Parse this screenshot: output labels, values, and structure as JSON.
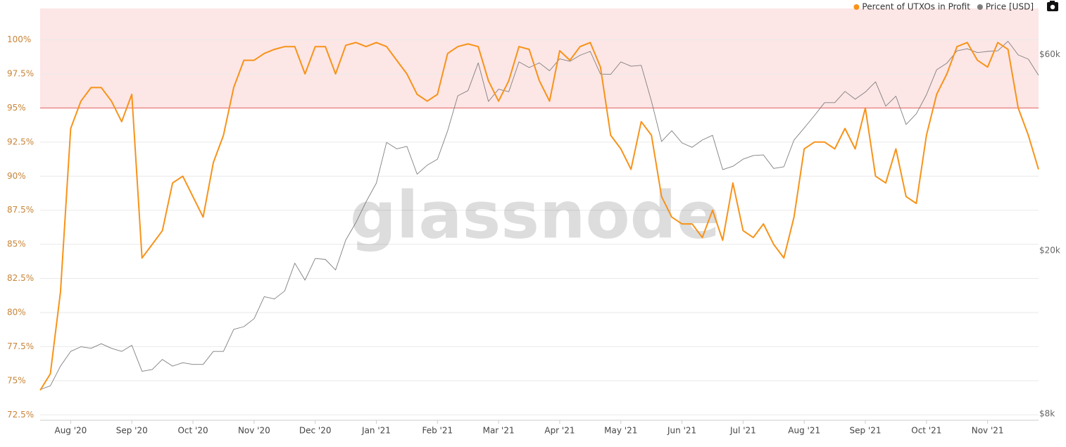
{
  "chart_data": {
    "type": "line",
    "watermark": "glassnode",
    "categories": [
      null,
      null,
      null,
      "Aug '20",
      null,
      null,
      null,
      null,
      null,
      "Sep '20",
      null,
      null,
      null,
      null,
      null,
      "Oct '20",
      null,
      null,
      null,
      null,
      null,
      "Nov '20",
      null,
      null,
      null,
      null,
      null,
      "Dec '20",
      null,
      null,
      null,
      null,
      null,
      "Jan '21",
      null,
      null,
      null,
      null,
      null,
      "Feb '21",
      null,
      null,
      null,
      null,
      null,
      "Mar '21",
      null,
      null,
      null,
      null,
      null,
      "Apr '21",
      null,
      null,
      null,
      null,
      null,
      "May '21",
      null,
      null,
      null,
      null,
      null,
      "Jun '21",
      null,
      null,
      null,
      null,
      null,
      "Jul '21",
      null,
      null,
      null,
      null,
      null,
      "Aug '21",
      null,
      null,
      null,
      null,
      null,
      "Sep '21",
      null,
      null,
      null,
      null,
      null,
      "Oct '21",
      null,
      null,
      null,
      null,
      null,
      "Nov '21",
      null,
      null,
      null,
      null,
      null
    ],
    "series": [
      {
        "name": "Percent of UTXOs in Profit",
        "color": "#f7931a",
        "axis": "y",
        "values": [
          74.3,
          75.5,
          81.5,
          93.5,
          95.5,
          96.5,
          96.5,
          95.5,
          94,
          96,
          84,
          85,
          86,
          89.5,
          90,
          88.5,
          87,
          91,
          93,
          96.5,
          98.5,
          98.5,
          99,
          99.3,
          99.5,
          99.5,
          97.5,
          99.5,
          99.5,
          97.5,
          99.6,
          99.8,
          99.5,
          99.8,
          99.5,
          98.5,
          97.5,
          96,
          95.5,
          96,
          99,
          99.5,
          99.7,
          99.5,
          97,
          95.5,
          97,
          99.5,
          99.3,
          97,
          95.5,
          99.2,
          98.5,
          99.5,
          99.8,
          98,
          93,
          92,
          90.5,
          94,
          93,
          88.5,
          87,
          86.5,
          86.5,
          85.5,
          87.5,
          85.3,
          89.5,
          86,
          85.5,
          86.5,
          85,
          84,
          87,
          92,
          92.5,
          92.5,
          92,
          93.5,
          92,
          95,
          90,
          89.5,
          92,
          88.5,
          88,
          93,
          96,
          97.5,
          99.5,
          99.8,
          98.5,
          98,
          99.8,
          99.3,
          95,
          93,
          90.5
        ]
      },
      {
        "name": "Price [USD]",
        "color": "#7f7f7f",
        "axis": "y2",
        "values": [
          9200,
          9400,
          10500,
          11400,
          11700,
          11600,
          11900,
          11600,
          11400,
          11800,
          10200,
          10300,
          10900,
          10500,
          10700,
          10600,
          10600,
          11400,
          11400,
          12900,
          13100,
          13700,
          15500,
          15300,
          16000,
          18700,
          17000,
          19200,
          19100,
          18000,
          21300,
          23500,
          26400,
          29300,
          36800,
          35500,
          36000,
          30800,
          32400,
          33500,
          39300,
          47800,
          49200,
          57500,
          46300,
          49600,
          48900,
          57800,
          56000,
          57500,
          55000,
          58800,
          58000,
          60000,
          61300,
          54000,
          53900,
          57800,
          56400,
          56700,
          46400,
          37000,
          39300,
          36700,
          35800,
          37300,
          38300,
          31600,
          32200,
          33500,
          34200,
          34300,
          31800,
          32100,
          37300,
          39900,
          42800,
          46000,
          46000,
          49000,
          46900,
          48800,
          51700,
          45100,
          47700,
          40700,
          43200,
          48100,
          55300,
          57400,
          61500,
          62200,
          60900,
          61300,
          61500,
          64900,
          60100,
          58700,
          53600
        ]
      }
    ],
    "ylim": [
      72.1,
      102.3
    ],
    "yticks": [
      {
        "value": 72.5,
        "label": "72.5%"
      },
      {
        "value": 75,
        "label": "75%"
      },
      {
        "value": 77.5,
        "label": "77.5%"
      },
      {
        "value": 80,
        "label": "80%"
      },
      {
        "value": 82.5,
        "label": "82.5%"
      },
      {
        "value": 85,
        "label": "85%"
      },
      {
        "value": 87.5,
        "label": "87.5%"
      },
      {
        "value": 90,
        "label": "90%"
      },
      {
        "value": 92.5,
        "label": "92.5%"
      },
      {
        "value": 95,
        "label": "95%"
      },
      {
        "value": 97.5,
        "label": "97.5%"
      },
      {
        "value": 100,
        "label": "100%"
      }
    ],
    "y2lim": [
      7750,
      78000
    ],
    "y2ticks": [
      {
        "value": 8000,
        "label": "$8k"
      },
      {
        "value": 20000,
        "label": "$20k"
      },
      {
        "value": 60000,
        "label": "$60k"
      }
    ],
    "y2_log": true,
    "grid": true,
    "highlight_above": 95,
    "highlight_color": "#fde6e6",
    "legend": "top-right"
  }
}
